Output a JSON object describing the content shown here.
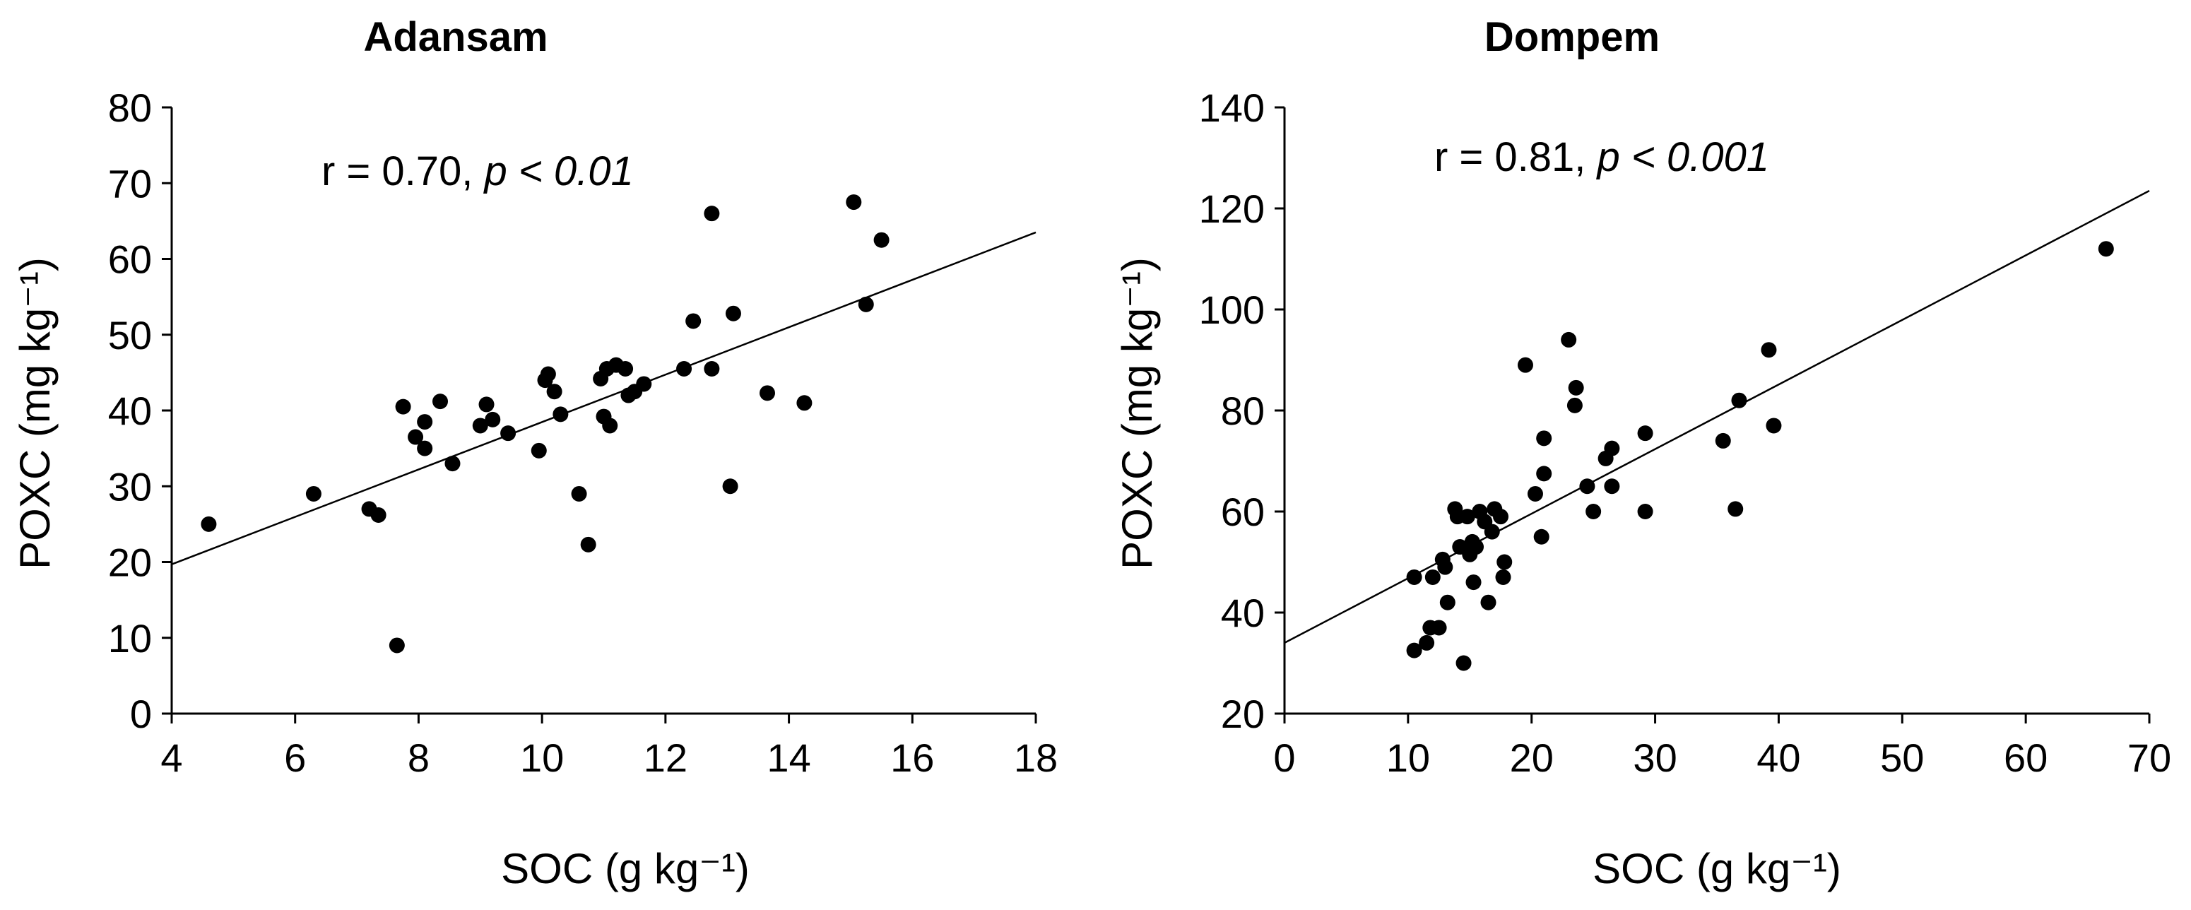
{
  "chart_data": [
    {
      "type": "scatter",
      "title": "Adansam",
      "xlabel": "SOC (g kg⁻¹)",
      "ylabel": "POXC (mg kg⁻¹)",
      "xlim": [
        4,
        18
      ],
      "ylim": [
        0,
        80
      ],
      "xticks": [
        4,
        6,
        8,
        10,
        12,
        14,
        16,
        18
      ],
      "yticks": [
        0,
        10,
        20,
        30,
        40,
        50,
        60,
        70,
        80
      ],
      "annotation": {
        "r": "r = 0.70, ",
        "p_symbol": "p",
        "p_rest": " < 0.01"
      },
      "trendline": {
        "x": [
          4,
          18
        ],
        "y": [
          19.7,
          63.5
        ]
      },
      "points": [
        {
          "x": 4.6,
          "y": 25
        },
        {
          "x": 6.3,
          "y": 29
        },
        {
          "x": 7.2,
          "y": 27
        },
        {
          "x": 7.35,
          "y": 26.2
        },
        {
          "x": 7.65,
          "y": 9
        },
        {
          "x": 7.75,
          "y": 40.5
        },
        {
          "x": 7.95,
          "y": 36.5
        },
        {
          "x": 8.1,
          "y": 38.5
        },
        {
          "x": 8.1,
          "y": 35
        },
        {
          "x": 8.35,
          "y": 41.2
        },
        {
          "x": 8.55,
          "y": 33
        },
        {
          "x": 9.0,
          "y": 38
        },
        {
          "x": 9.1,
          "y": 40.8
        },
        {
          "x": 9.2,
          "y": 38.8
        },
        {
          "x": 9.45,
          "y": 37
        },
        {
          "x": 9.95,
          "y": 34.7
        },
        {
          "x": 10.05,
          "y": 44
        },
        {
          "x": 10.1,
          "y": 44.8
        },
        {
          "x": 10.2,
          "y": 42.5
        },
        {
          "x": 10.3,
          "y": 39.5
        },
        {
          "x": 10.6,
          "y": 29
        },
        {
          "x": 10.75,
          "y": 22.3
        },
        {
          "x": 10.95,
          "y": 44.2
        },
        {
          "x": 11.0,
          "y": 39.2
        },
        {
          "x": 11.05,
          "y": 45.5
        },
        {
          "x": 11.1,
          "y": 38
        },
        {
          "x": 11.2,
          "y": 46
        },
        {
          "x": 11.35,
          "y": 45.5
        },
        {
          "x": 11.4,
          "y": 42
        },
        {
          "x": 11.5,
          "y": 42.5
        },
        {
          "x": 11.65,
          "y": 43.5
        },
        {
          "x": 12.3,
          "y": 45.5
        },
        {
          "x": 12.45,
          "y": 51.8
        },
        {
          "x": 12.75,
          "y": 45.5
        },
        {
          "x": 12.75,
          "y": 66
        },
        {
          "x": 13.05,
          "y": 30
        },
        {
          "x": 13.1,
          "y": 52.8
        },
        {
          "x": 13.65,
          "y": 42.3
        },
        {
          "x": 14.25,
          "y": 41
        },
        {
          "x": 15.05,
          "y": 67.5
        },
        {
          "x": 15.25,
          "y": 54
        },
        {
          "x": 15.5,
          "y": 62.5
        }
      ]
    },
    {
      "type": "scatter",
      "title": "Dompem",
      "xlabel": "SOC (g kg⁻¹)",
      "ylabel": "POXC (mg kg⁻¹)",
      "xlim": [
        0,
        70
      ],
      "ylim": [
        20,
        140
      ],
      "xticks": [
        0,
        10,
        20,
        30,
        40,
        50,
        60,
        70
      ],
      "yticks": [
        20,
        40,
        60,
        80,
        100,
        120,
        140
      ],
      "annotation": {
        "r": "r = 0.81, ",
        "p_symbol": "p",
        "p_rest": " < 0.001"
      },
      "trendline": {
        "x": [
          0,
          70
        ],
        "y": [
          34,
          123.5
        ]
      },
      "points": [
        {
          "x": 10.5,
          "y": 32.5
        },
        {
          "x": 10.5,
          "y": 47
        },
        {
          "x": 11.5,
          "y": 34
        },
        {
          "x": 11.8,
          "y": 37
        },
        {
          "x": 12,
          "y": 47
        },
        {
          "x": 12.5,
          "y": 37
        },
        {
          "x": 12.8,
          "y": 50.5
        },
        {
          "x": 13,
          "y": 49
        },
        {
          "x": 13.2,
          "y": 42
        },
        {
          "x": 13.8,
          "y": 60.5
        },
        {
          "x": 14,
          "y": 59
        },
        {
          "x": 14.2,
          "y": 53
        },
        {
          "x": 14.5,
          "y": 30
        },
        {
          "x": 14.8,
          "y": 59
        },
        {
          "x": 15,
          "y": 51.5
        },
        {
          "x": 15.2,
          "y": 54
        },
        {
          "x": 15.3,
          "y": 46
        },
        {
          "x": 15.5,
          "y": 53
        },
        {
          "x": 15.8,
          "y": 60
        },
        {
          "x": 16.2,
          "y": 58
        },
        {
          "x": 16.5,
          "y": 42
        },
        {
          "x": 16.8,
          "y": 56
        },
        {
          "x": 17,
          "y": 60.5
        },
        {
          "x": 17.5,
          "y": 59
        },
        {
          "x": 17.7,
          "y": 47
        },
        {
          "x": 17.8,
          "y": 50
        },
        {
          "x": 19.5,
          "y": 89
        },
        {
          "x": 20.3,
          "y": 63.5
        },
        {
          "x": 20.8,
          "y": 55
        },
        {
          "x": 21,
          "y": 74.5
        },
        {
          "x": 21,
          "y": 67.5
        },
        {
          "x": 23,
          "y": 94
        },
        {
          "x": 23.5,
          "y": 81
        },
        {
          "x": 23.6,
          "y": 84.5
        },
        {
          "x": 24.5,
          "y": 65
        },
        {
          "x": 25,
          "y": 60
        },
        {
          "x": 26,
          "y": 70.5
        },
        {
          "x": 26.5,
          "y": 72.5
        },
        {
          "x": 26.5,
          "y": 65
        },
        {
          "x": 29.2,
          "y": 75.5
        },
        {
          "x": 29.2,
          "y": 60
        },
        {
          "x": 35.5,
          "y": 74
        },
        {
          "x": 36.5,
          "y": 60.5
        },
        {
          "x": 36.8,
          "y": 82
        },
        {
          "x": 39.2,
          "y": 92
        },
        {
          "x": 39.6,
          "y": 77
        },
        {
          "x": 66.5,
          "y": 112
        }
      ]
    }
  ]
}
